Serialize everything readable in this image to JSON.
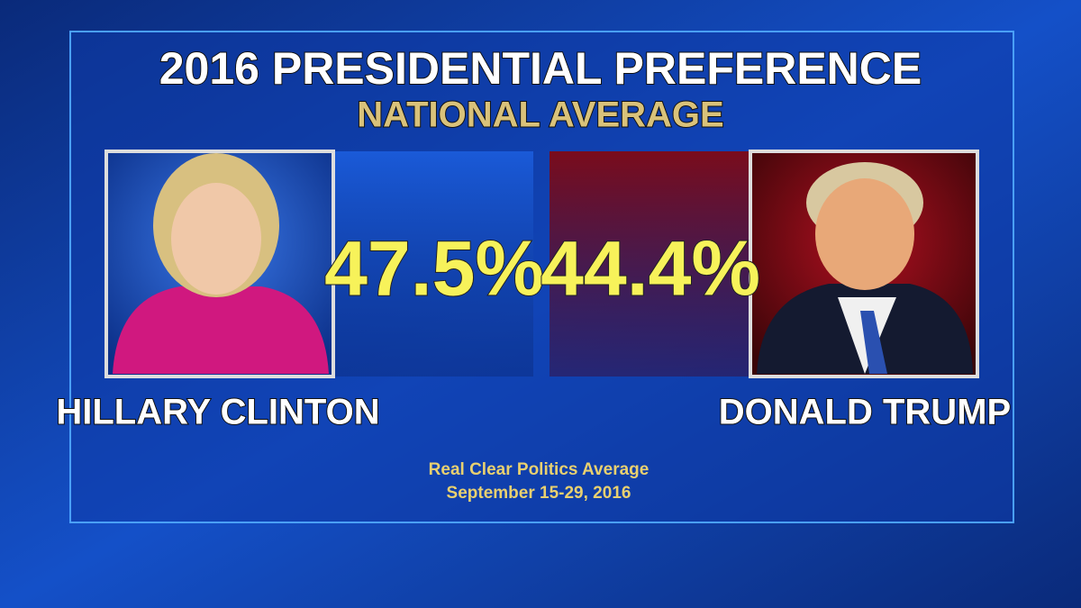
{
  "title": "2016 PRESIDENTIAL PREFERENCE",
  "subtitle": "NATIONAL AVERAGE",
  "candidates": [
    {
      "name": "HILLARY CLINTON",
      "value": "47.5%"
    },
    {
      "name": "DONALD TRUMP",
      "value": "44.4%"
    }
  ],
  "source": [
    "Real Clear Politics Average",
    "September 15-29, 2016"
  ]
}
